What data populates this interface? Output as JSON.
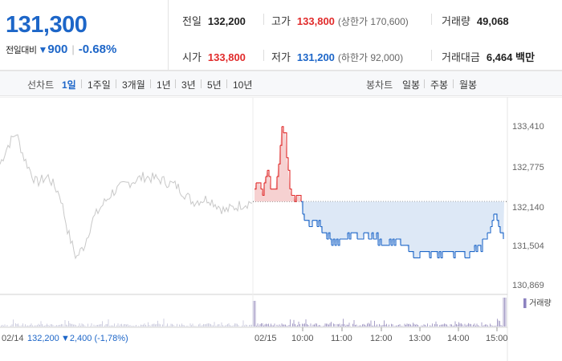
{
  "summary": {
    "price": "131,300",
    "change_label": "전일대비",
    "change_arrow": "▼",
    "change_amount": "900",
    "change_pct": "-0.68%",
    "stats": {
      "prev_close_label": "전일",
      "prev_close": "132,200",
      "high_label": "고가",
      "high": "133,800",
      "upper_limit": "(상한가 170,600)",
      "volume_label": "거래량",
      "volume": "49,068",
      "open_label": "시가",
      "open": "133,800",
      "low_label": "저가",
      "low": "131,200",
      "lower_limit": "(하한가 92,000)",
      "amount_label": "거래대금",
      "amount": "6,464 백만"
    }
  },
  "toolbar": {
    "line_label": "선차트",
    "periods": [
      "1일",
      "1주일",
      "3개월",
      "1년",
      "3년",
      "5년",
      "10년"
    ],
    "selected_period": "1일",
    "candle_label": "봉차트",
    "candles": [
      "일봉",
      "주봉",
      "월봉"
    ]
  },
  "chart_data": {
    "type": "line",
    "y_ticks": [
      "133,410",
      "132,775",
      "132,140",
      "131,504",
      "130,869"
    ],
    "ylim": [
      130869,
      133410
    ],
    "prev_close": 132200,
    "volume_legend": "거래량",
    "prev_day": {
      "date_label": "02/14",
      "close_label": "132,200",
      "change_label": "▼2,400 (-1,78%)"
    },
    "today_date_label": "02/15",
    "time_labels": [
      "10:00",
      "11:00",
      "12:00",
      "13:00",
      "14:00",
      "15:00"
    ],
    "colors": {
      "up": "#e12b2b",
      "down": "#1d66c8",
      "prev": "#c8c8c8",
      "fill_up": "#f6d1d1",
      "fill_down": "#dde8f6",
      "volume": "#a8a0c8"
    }
  }
}
